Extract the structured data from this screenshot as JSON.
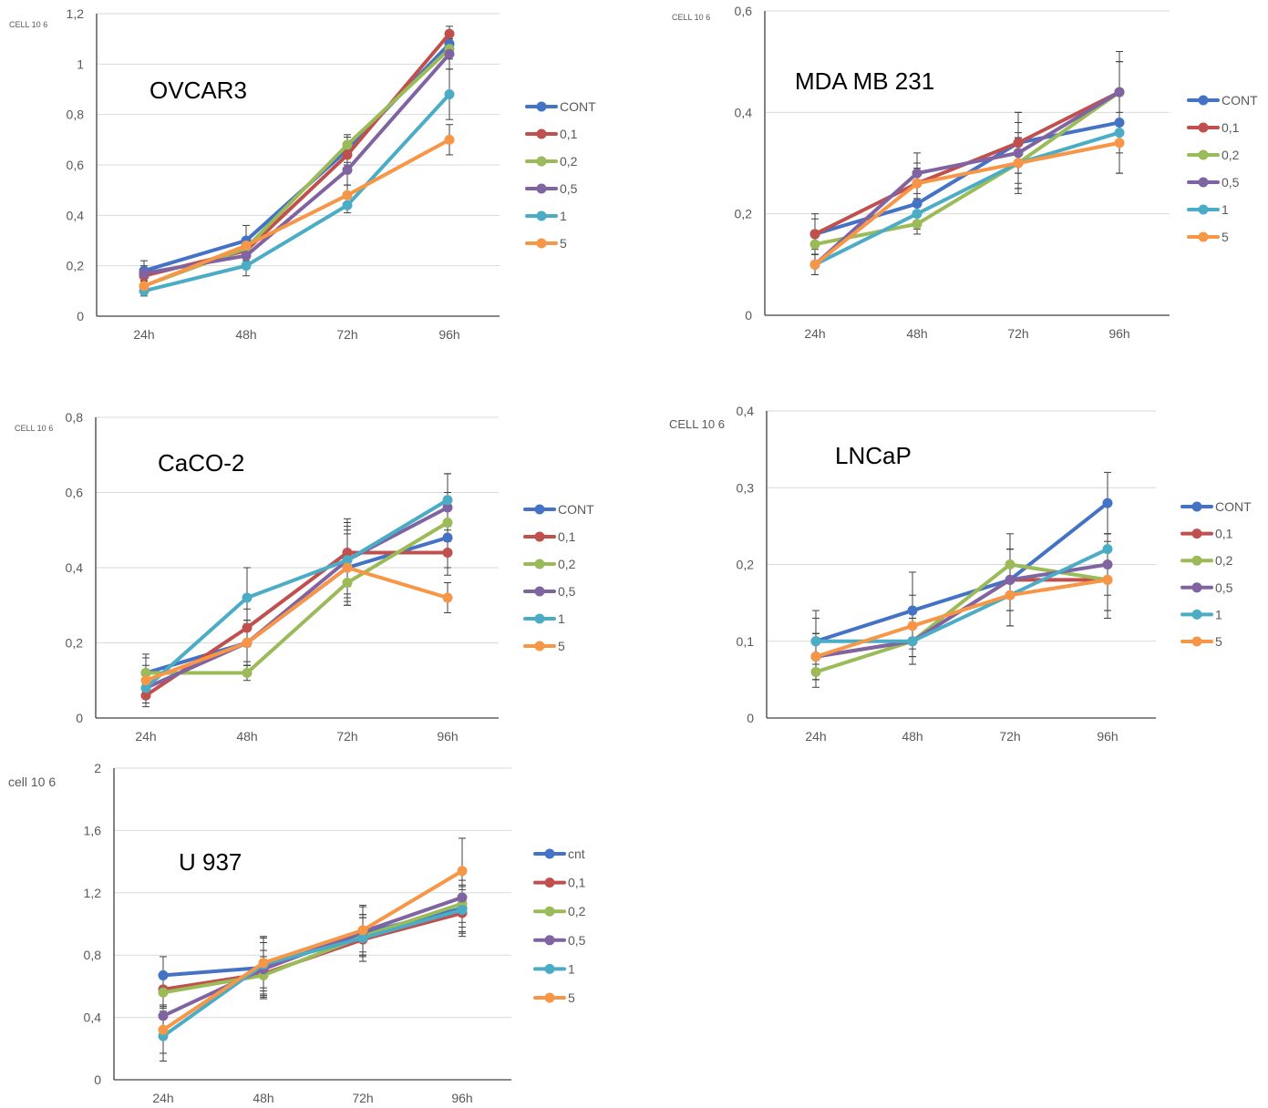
{
  "series_colors": [
    "#4472c4",
    "#c0504d",
    "#9bbb59",
    "#8064a2",
    "#4bacc6",
    "#f79646"
  ],
  "chart_data": [
    {
      "type": "line",
      "title": "OVCAR3",
      "ylabel": "CELL 10 6",
      "categories": [
        "24h",
        "48h",
        "72h",
        "96h"
      ],
      "ylim": [
        0,
        1.2
      ],
      "yticks": [
        "0",
        "0,2",
        "0,4",
        "0,6",
        "0,8",
        "1",
        "1,2"
      ],
      "grid": true,
      "legend": "right",
      "series": [
        {
          "name": "CONT",
          "values": [
            0.18,
            0.3,
            0.66,
            1.08
          ],
          "err": [
            0.04,
            0.06,
            0.05,
            0.05
          ]
        },
        {
          "name": "0,1",
          "values": [
            0.16,
            0.26,
            0.64,
            1.12
          ],
          "err": [
            0.03,
            0.04,
            0.04,
            0.03
          ]
        },
        {
          "name": "0,2",
          "values": [
            0.12,
            0.27,
            0.68,
            1.06
          ],
          "err": [
            0.02,
            0.03,
            0.04,
            0.04
          ]
        },
        {
          "name": "0,5",
          "values": [
            0.17,
            0.24,
            0.58,
            1.04
          ],
          "err": [
            0.03,
            0.03,
            0.06,
            0.06
          ]
        },
        {
          "name": "1",
          "values": [
            0.1,
            0.2,
            0.44,
            0.88
          ],
          "err": [
            0.02,
            0.04,
            0.03,
            0.1
          ]
        },
        {
          "name": "5",
          "values": [
            0.12,
            0.28,
            0.48,
            0.7
          ],
          "err": [
            0.02,
            0.03,
            0.04,
            0.06
          ]
        }
      ]
    },
    {
      "type": "line",
      "title": "MDA MB 231",
      "ylabel": "CELL 10 6",
      "categories": [
        "24h",
        "48h",
        "72h",
        "96h"
      ],
      "ylim": [
        0,
        0.6
      ],
      "yticks": [
        "0",
        "0,2",
        "0,4",
        "0,6"
      ],
      "grid": true,
      "legend": "right",
      "series": [
        {
          "name": "CONT",
          "values": [
            0.16,
            0.22,
            0.34,
            0.38
          ],
          "err": [
            0.04,
            0.04,
            0.06,
            0.06
          ]
        },
        {
          "name": "0,1",
          "values": [
            0.16,
            0.26,
            0.34,
            0.44
          ],
          "err": [
            0.03,
            0.04,
            0.06,
            0.06
          ]
        },
        {
          "name": "0,2",
          "values": [
            0.14,
            0.18,
            0.3,
            0.44
          ],
          "err": [
            0.02,
            0.02,
            0.05,
            0.06
          ]
        },
        {
          "name": "0,5",
          "values": [
            0.1,
            0.28,
            0.32,
            0.44
          ],
          "err": [
            0.02,
            0.04,
            0.06,
            0.08
          ]
        },
        {
          "name": "1",
          "values": [
            0.1,
            0.2,
            0.3,
            0.36
          ],
          "err": [
            0.02,
            0.03,
            0.05,
            0.08
          ]
        },
        {
          "name": "5",
          "values": [
            0.1,
            0.26,
            0.3,
            0.34
          ],
          "err": [
            0.02,
            0.03,
            0.06,
            0.06
          ]
        }
      ]
    },
    {
      "type": "line",
      "title": "CaCO-2",
      "ylabel": "CELL 10 6",
      "categories": [
        "24h",
        "48h",
        "72h",
        "96h"
      ],
      "ylim": [
        0,
        0.8
      ],
      "yticks": [
        "0",
        "0,2",
        "0,4",
        "0,6",
        "0,8"
      ],
      "grid": true,
      "legend": "right",
      "series": [
        {
          "name": "CONT",
          "values": [
            0.12,
            0.2,
            0.4,
            0.48
          ],
          "err": [
            0.05,
            0.06,
            0.1,
            0.08
          ]
        },
        {
          "name": "0,1",
          "values": [
            0.06,
            0.24,
            0.44,
            0.44
          ],
          "err": [
            0.03,
            0.05,
            0.09,
            0.06
          ]
        },
        {
          "name": "0,2",
          "values": [
            0.12,
            0.12,
            0.36,
            0.52
          ],
          "err": [
            0.04,
            0.02,
            0.06,
            0.08
          ]
        },
        {
          "name": "0,5",
          "values": [
            0.08,
            0.2,
            0.42,
            0.56
          ],
          "err": [
            0.04,
            0.06,
            0.1,
            0.09
          ]
        },
        {
          "name": "1",
          "values": [
            0.08,
            0.32,
            0.42,
            0.58
          ],
          "err": [
            0.04,
            0.08,
            0.09,
            0.07
          ]
        },
        {
          "name": "5",
          "values": [
            0.1,
            0.2,
            0.4,
            0.32
          ],
          "err": [
            0.04,
            0.05,
            0.09,
            0.04
          ]
        }
      ]
    },
    {
      "type": "line",
      "title": "LNCaP",
      "ylabel": "CELL 10 6",
      "categories": [
        "24h",
        "48h",
        "72h",
        "96h"
      ],
      "ylim": [
        0,
        0.4
      ],
      "yticks": [
        "0",
        "0,1",
        "0,2",
        "0,3",
        "0,4"
      ],
      "grid": true,
      "legend": "right",
      "series": [
        {
          "name": "CONT",
          "values": [
            0.1,
            0.14,
            0.18,
            0.28
          ],
          "err": [
            0.04,
            0.05,
            0.04,
            0.04
          ]
        },
        {
          "name": "0,1",
          "values": [
            0.08,
            0.1,
            0.18,
            0.18
          ],
          "err": [
            0.03,
            0.03,
            0.04,
            0.04
          ]
        },
        {
          "name": "0,2",
          "values": [
            0.06,
            0.1,
            0.2,
            0.18
          ],
          "err": [
            0.02,
            0.02,
            0.04,
            0.04
          ]
        },
        {
          "name": "0,5",
          "values": [
            0.08,
            0.1,
            0.18,
            0.2
          ],
          "err": [
            0.03,
            0.03,
            0.04,
            0.04
          ]
        },
        {
          "name": "1",
          "values": [
            0.1,
            0.1,
            0.16,
            0.22
          ],
          "err": [
            0.03,
            0.03,
            0.04,
            0.02
          ]
        },
        {
          "name": "5",
          "values": [
            0.08,
            0.12,
            0.16,
            0.18
          ],
          "err": [
            0.03,
            0.04,
            0.04,
            0.05
          ]
        }
      ]
    },
    {
      "type": "line",
      "title": "U 937",
      "ylabel": "cell 10 6",
      "categories": [
        "24h",
        "48h",
        "72h",
        "96h"
      ],
      "ylim": [
        0,
        2
      ],
      "yticks": [
        "0",
        "0,4",
        "0,8",
        "1,2",
        "1,6",
        "2"
      ],
      "grid": true,
      "legend": "right",
      "series": [
        {
          "name": "cnt",
          "values": [
            0.67,
            0.72,
            0.94,
            1.1
          ],
          "err": [
            0.12,
            0.2,
            0.12,
            0.15
          ]
        },
        {
          "name": "0,1",
          "values": [
            0.58,
            0.68,
            0.9,
            1.07
          ],
          "err": [
            0.1,
            0.15,
            0.14,
            0.15
          ]
        },
        {
          "name": "0,2",
          "values": [
            0.56,
            0.67,
            0.92,
            1.13
          ],
          "err": [
            0.1,
            0.12,
            0.12,
            0.15
          ]
        },
        {
          "name": "0,5",
          "values": [
            0.41,
            0.71,
            0.95,
            1.17
          ],
          "err": [
            0.15,
            0.17,
            0.16,
            0.16
          ]
        },
        {
          "name": "1",
          "values": [
            0.28,
            0.74,
            0.91,
            1.09
          ],
          "err": [
            0.16,
            0.17,
            0.15,
            0.15
          ]
        },
        {
          "name": "5",
          "values": [
            0.32,
            0.75,
            0.96,
            1.34
          ],
          "err": [
            0.15,
            0.16,
            0.16,
            0.21
          ]
        }
      ]
    }
  ]
}
